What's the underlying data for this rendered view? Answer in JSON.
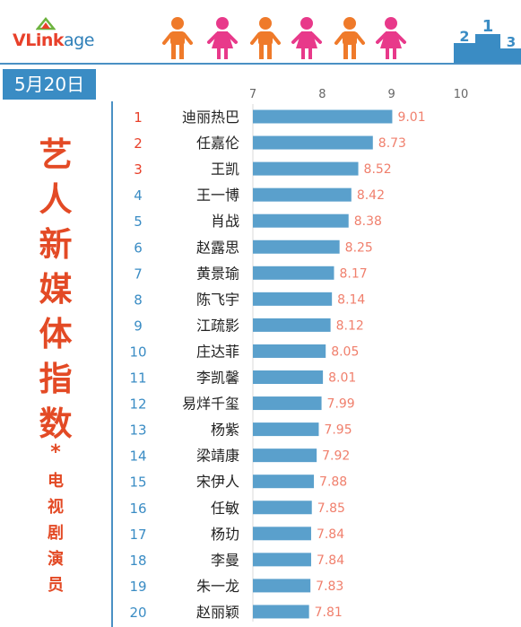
{
  "header": {
    "logo_v": "V",
    "logo_link": "Link",
    "logo_age": "age",
    "date": "5月20日",
    "person_colors": [
      "#ef7a2a",
      "#e8398a",
      "#ef7a2a",
      "#e8398a",
      "#ef7a2a",
      "#e8398a"
    ],
    "podium_numbers": [
      "2",
      "1",
      "3"
    ]
  },
  "side_title": {
    "chars": [
      "艺",
      "人",
      "新",
      "媒",
      "体",
      "指",
      "数"
    ],
    "star": "*",
    "sub_chars": [
      "电",
      "视",
      "剧",
      "演",
      "员"
    ]
  },
  "colors": {
    "bar": "#5aa0cc",
    "value_label": "#f07f6c",
    "rank_top": "#e8402a",
    "rank_rest": "#3a8cc4",
    "title_red": "#e34a25",
    "accent_blue": "#3a8cc4"
  },
  "chart_data": {
    "type": "bar",
    "orientation": "horizontal",
    "xlim": [
      7,
      10
    ],
    "xticks": [
      7,
      8,
      9,
      10
    ],
    "ranks": [
      "1",
      "2",
      "3",
      "4",
      "5",
      "6",
      "7",
      "8",
      "9",
      "10",
      "11",
      "12",
      "13",
      "14",
      "15",
      "16",
      "17",
      "18",
      "19",
      "20"
    ],
    "categories": [
      "迪丽热巴",
      "任嘉伦",
      "王凯",
      "王一博",
      "肖战",
      "赵露思",
      "黄景瑜",
      "陈飞宇",
      "江疏影",
      "庄达菲",
      "李凯馨",
      "易烊千玺",
      "杨紫",
      "梁靖康",
      "宋伊人",
      "任敏",
      "杨玏",
      "李曼",
      "朱一龙",
      "赵丽颖"
    ],
    "values": [
      9.01,
      8.73,
      8.52,
      8.42,
      8.38,
      8.25,
      8.17,
      8.14,
      8.12,
      8.05,
      8.01,
      7.99,
      7.95,
      7.92,
      7.88,
      7.85,
      7.84,
      7.84,
      7.83,
      7.81
    ],
    "value_labels": [
      "9.01",
      "8.73",
      "8.52",
      "8.42",
      "8.38",
      "8.25",
      "8.17",
      "8.14",
      "8.12",
      "8.05",
      "8.01",
      "7.99",
      "7.95",
      "7.92",
      "7.88",
      "7.85",
      "7.84",
      "7.84",
      "7.83",
      "7.81"
    ]
  }
}
